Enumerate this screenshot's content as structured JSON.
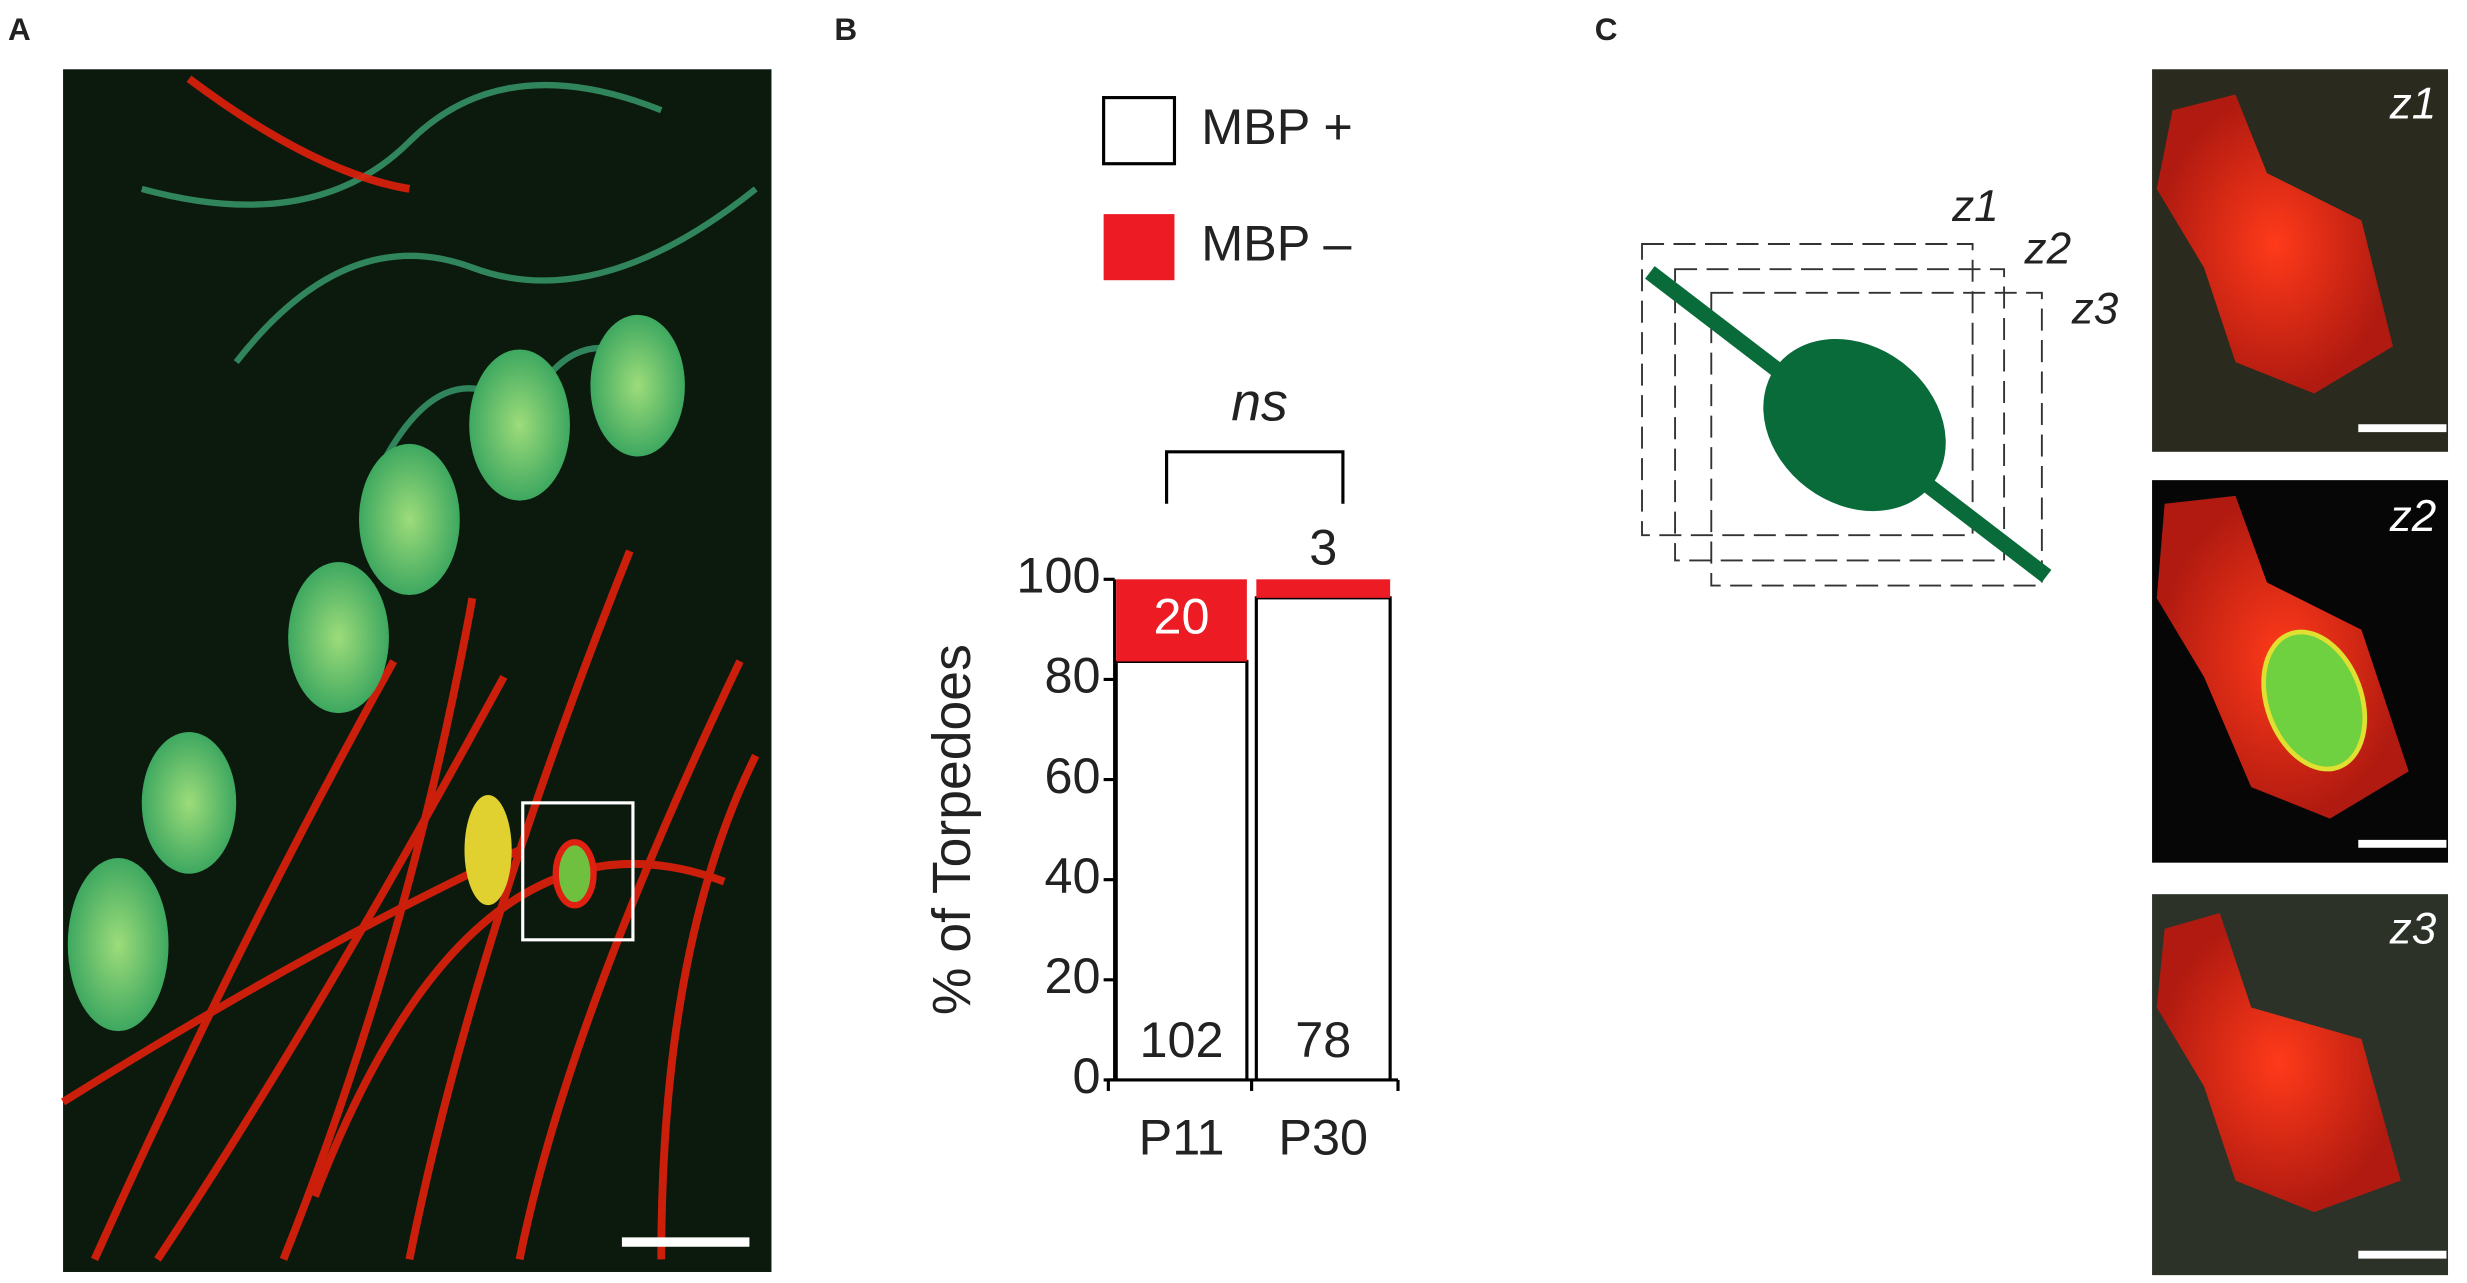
{
  "panels": {
    "a": "A",
    "b": "B",
    "c": "C"
  },
  "schematic": {
    "labels": [
      "z1",
      "z2",
      "z3"
    ]
  },
  "images": {
    "labels": [
      "z1",
      "z2",
      "z3"
    ]
  },
  "chart_data": {
    "type": "stacked_bar",
    "y_label": "% of Torpedoes",
    "annotation": "ns",
    "categories": [
      "P11",
      "P30"
    ],
    "series": [
      {
        "name": "MBP +",
        "color": "#ffffff",
        "values": [
          83.6,
          96.3
        ],
        "counts": [
          102,
          78
        ]
      },
      {
        "name": "MBP –",
        "color": "#ed1c24",
        "values": [
          16.4,
          3.7
        ],
        "counts": [
          20,
          3
        ]
      }
    ],
    "ylim": [
      0,
      100
    ],
    "yticks": [
      0,
      20,
      40,
      60,
      80,
      100
    ]
  }
}
